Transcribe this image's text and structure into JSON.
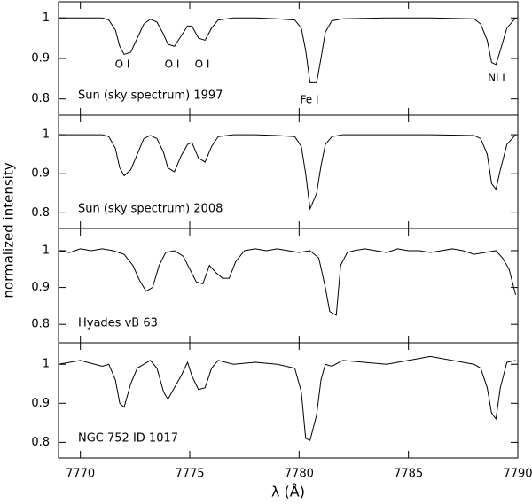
{
  "ylabel": "normalized intensity",
  "xlabel": "λ (Å)",
  "chart_data": [
    {
      "type": "line",
      "label": "Sun (sky spectrum) 1997",
      "color": "#000000",
      "annotations": [
        "O I",
        "O I",
        "O I",
        "Fe I",
        "Ni I"
      ],
      "xlim": [
        7769,
        7790
      ],
      "xticks": [
        7770,
        7775,
        7780,
        7785,
        7790
      ],
      "ylim": [
        0.76,
        1.04
      ],
      "yticks": [
        0.8,
        0.9,
        1
      ],
      "x": [
        7769,
        7770,
        7771,
        7771.3,
        7771.6,
        7771.8,
        7772.0,
        7772.3,
        7772.6,
        7772.9,
        7773.2,
        7773.5,
        7773.8,
        7774.0,
        7774.3,
        7774.6,
        7774.9,
        7775.1,
        7775.4,
        7775.7,
        7776.0,
        7776.3,
        7777,
        7778,
        7779,
        7779.8,
        7780.1,
        7780.3,
        7780.5,
        7780.8,
        7781.0,
        7781.2,
        7781.5,
        7782,
        7784,
        7786,
        7788,
        7788.3,
        7788.6,
        7788.8,
        7789.0,
        7789.2,
        7789.5,
        7789.9
      ],
      "values": [
        1.0,
        1.0,
        1.0,
        0.995,
        0.97,
        0.93,
        0.91,
        0.915,
        0.95,
        0.985,
        0.997,
        0.99,
        0.96,
        0.935,
        0.93,
        0.955,
        0.98,
        0.98,
        0.95,
        0.945,
        0.975,
        0.995,
        1.0,
        1.0,
        0.998,
        0.995,
        0.975,
        0.92,
        0.84,
        0.84,
        0.9,
        0.965,
        0.993,
        0.998,
        1.0,
        1.0,
        0.998,
        0.985,
        0.945,
        0.89,
        0.885,
        0.92,
        0.975,
        1.0
      ]
    },
    {
      "type": "line",
      "label": "Sun (sky spectrum) 2008",
      "color": "#000000",
      "xlim": [
        7769,
        7790
      ],
      "xticks": [
        7770,
        7775,
        7780,
        7785,
        7790
      ],
      "ylim": [
        0.76,
        1.05
      ],
      "yticks": [
        0.8,
        0.9,
        1
      ],
      "x": [
        7769,
        7770,
        7771,
        7771.3,
        7771.6,
        7771.8,
        7772.0,
        7772.3,
        7772.6,
        7772.9,
        7773.2,
        7773.5,
        7773.8,
        7774.0,
        7774.3,
        7774.6,
        7774.9,
        7775.1,
        7775.4,
        7775.7,
        7776.0,
        7776.3,
        7777,
        7778,
        7779,
        7779.8,
        7780.1,
        7780.3,
        7780.5,
        7780.8,
        7781.0,
        7781.2,
        7781.5,
        7782,
        7784,
        7786,
        7788,
        7788.3,
        7788.6,
        7788.8,
        7789.0,
        7789.2,
        7789.5,
        7789.9
      ],
      "values": [
        1.0,
        1.0,
        1.0,
        0.995,
        0.965,
        0.915,
        0.895,
        0.91,
        0.95,
        0.99,
        0.998,
        0.99,
        0.955,
        0.915,
        0.905,
        0.945,
        0.975,
        0.98,
        0.94,
        0.93,
        0.97,
        0.995,
        1.0,
        1.0,
        0.998,
        0.995,
        0.97,
        0.9,
        0.81,
        0.85,
        0.92,
        0.975,
        0.995,
        1.0,
        1.0,
        1.0,
        0.998,
        0.99,
        0.95,
        0.875,
        0.86,
        0.91,
        0.975,
        1.0
      ]
    },
    {
      "type": "line",
      "label": "Hyades vB 63",
      "color": "#000000",
      "xlim": [
        7769,
        7790
      ],
      "xticks": [
        7770,
        7775,
        7780,
        7785,
        7790
      ],
      "ylim": [
        0.75,
        1.06
      ],
      "yticks": [
        0.8,
        0.9,
        1
      ],
      "x": [
        7769,
        7769.5,
        7770,
        7770.5,
        7771,
        7771.5,
        7772,
        7772.4,
        7772.7,
        7773.0,
        7773.3,
        7773.6,
        7773.9,
        7774.3,
        7774.7,
        7775.0,
        7775.3,
        7775.6,
        7775.9,
        7776.2,
        7776.5,
        7776.8,
        7777.1,
        7777.5,
        7778,
        7778.5,
        7779,
        7779.5,
        7780,
        7780.5,
        7780.9,
        7781.2,
        7781.4,
        7781.7,
        7781.9,
        7782.2,
        7782.5,
        7783,
        7783.5,
        7784,
        7784.5,
        7785,
        7785.5,
        7786,
        7786.5,
        7787,
        7787.5,
        7788,
        7788.5,
        7789,
        7789.3,
        7789.6,
        7789.9
      ],
      "values": [
        1.0,
        0.995,
        1.005,
        1.0,
        1.005,
        1.0,
        0.99,
        0.96,
        0.92,
        0.89,
        0.9,
        0.96,
        0.995,
        1.0,
        0.985,
        0.95,
        0.915,
        0.91,
        0.96,
        0.94,
        0.925,
        0.925,
        0.97,
        1.0,
        1.005,
        1.0,
        1.005,
        1.0,
        0.995,
        1.0,
        0.98,
        0.9,
        0.835,
        0.825,
        0.96,
        0.995,
        1.0,
        1.005,
        1.0,
        0.995,
        1.005,
        1.0,
        1.0,
        0.995,
        1.0,
        1.005,
        1.0,
        0.99,
        0.995,
        1.0,
        0.98,
        0.95,
        0.88
      ]
    },
    {
      "type": "line",
      "label": "NGC 752 ID 1017",
      "color": "#000000",
      "xlim": [
        7769,
        7790
      ],
      "xticks": [
        7770,
        7775,
        7780,
        7785,
        7790
      ],
      "ylim": [
        0.76,
        1.055
      ],
      "yticks": [
        0.8,
        0.9,
        1
      ],
      "x": [
        7769,
        7770,
        7771,
        7771.3,
        7771.6,
        7771.8,
        7772.0,
        7772.3,
        7772.6,
        7772.9,
        7773.2,
        7773.5,
        7773.8,
        7774.0,
        7774.3,
        7774.6,
        7774.9,
        7775.1,
        7775.4,
        7775.7,
        7776.0,
        7776.3,
        7777,
        7778,
        7779,
        7779.8,
        7780.1,
        7780.3,
        7780.5,
        7780.8,
        7781.0,
        7781.2,
        7781.5,
        7782,
        7784,
        7786,
        7788,
        7788.3,
        7788.6,
        7788.8,
        7789.0,
        7789.2,
        7789.5,
        7789.9
      ],
      "values": [
        1.0,
        1.01,
        0.995,
        1.0,
        0.96,
        0.9,
        0.89,
        0.95,
        0.99,
        1.0,
        1.01,
        0.99,
        0.93,
        0.91,
        0.94,
        0.97,
        1.005,
        0.97,
        0.935,
        0.94,
        0.99,
        1.01,
        1.0,
        1.005,
        1.0,
        0.99,
        0.93,
        0.81,
        0.805,
        0.87,
        0.96,
        1.0,
        0.995,
        1.01,
        1.0,
        1.02,
        1.0,
        0.99,
        0.94,
        0.875,
        0.86,
        0.94,
        1.005,
        1.01
      ]
    }
  ]
}
